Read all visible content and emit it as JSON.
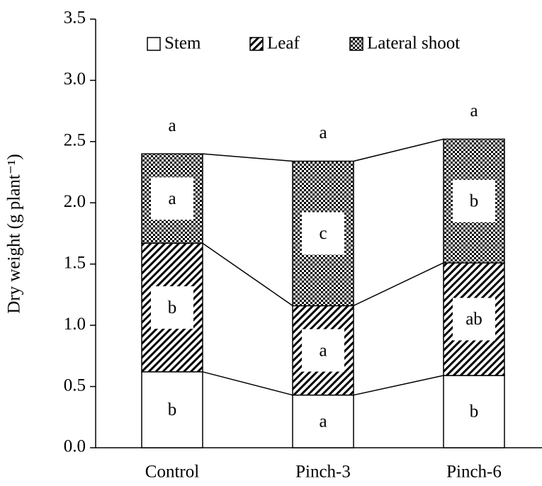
{
  "chart_data": {
    "type": "stacked_bar",
    "ylabel": "Dry weight (g plant⁻¹)",
    "categories": [
      "Control",
      "Pinch-3",
      "Pinch-6"
    ],
    "series": [
      {
        "name": "Stem",
        "color": "#ffffff",
        "pattern": "none",
        "values": [
          0.62,
          0.43,
          0.59
        ],
        "letters": [
          "b",
          "a",
          "b"
        ]
      },
      {
        "name": "Leaf",
        "color": "#000000",
        "pattern": "hatch",
        "values": [
          1.05,
          0.73,
          0.92
        ],
        "letters": [
          "b",
          "a",
          "ab"
        ]
      },
      {
        "name": "Lateral shoot",
        "color": "#000000",
        "pattern": "checker",
        "values": [
          0.73,
          1.18,
          1.01
        ],
        "letters": [
          "a",
          "c",
          "b"
        ]
      }
    ],
    "total_letters": [
      "a",
      "a",
      "a"
    ],
    "ylim": [
      0,
      3.5
    ],
    "yticks": [
      {
        "value": 0,
        "label": "0.0"
      },
      {
        "value": 0.5,
        "label": "0.5"
      },
      {
        "value": 1,
        "label": "1.0"
      },
      {
        "value": 1.5,
        "label": "1.5"
      },
      {
        "value": 2,
        "label": "2.0"
      },
      {
        "value": 2.5,
        "label": "2.5"
      },
      {
        "value": 3,
        "label": "3.0"
      },
      {
        "value": 3.5,
        "label": "3.5"
      }
    ],
    "legend": "top"
  }
}
